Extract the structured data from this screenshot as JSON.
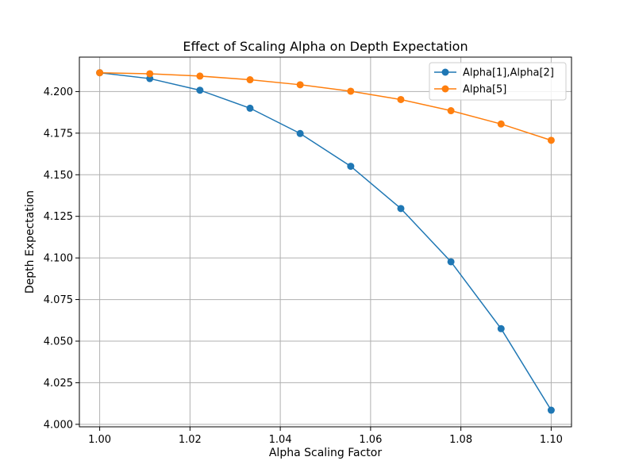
{
  "chart_data": {
    "type": "line",
    "title": "Effect of Scaling Alpha on Depth Expectation",
    "xlabel": "Alpha Scaling Factor",
    "ylabel": "Depth Expectation",
    "xlim": [
      0.9955,
      1.1045
    ],
    "ylim": [
      3.9985,
      4.2207
    ],
    "x": [
      1.0,
      1.0111,
      1.0222,
      1.0333,
      1.0444,
      1.0556,
      1.0667,
      1.0778,
      1.0889,
      1.1
    ],
    "xticks": [
      "1.00",
      "1.02",
      "1.04",
      "1.06",
      "1.08",
      "1.10"
    ],
    "yticks": [
      "4.000",
      "4.025",
      "4.050",
      "4.075",
      "4.100",
      "4.125",
      "4.150",
      "4.175",
      "4.200"
    ],
    "grid": true,
    "legend_position": "top-right",
    "series": [
      {
        "name": "Alpha[1],Alpha[2]",
        "color": "#1f77b4",
        "values": [
          4.2113,
          4.2078,
          4.2008,
          4.19,
          4.1748,
          4.1551,
          4.1297,
          4.0977,
          4.0575,
          4.0085
        ]
      },
      {
        "name": "Alpha[5]",
        "color": "#ff7f0e",
        "values": [
          4.2113,
          4.2107,
          4.2093,
          4.2071,
          4.2041,
          4.2002,
          4.1952,
          4.1885,
          4.1805,
          4.1707
        ]
      }
    ]
  }
}
